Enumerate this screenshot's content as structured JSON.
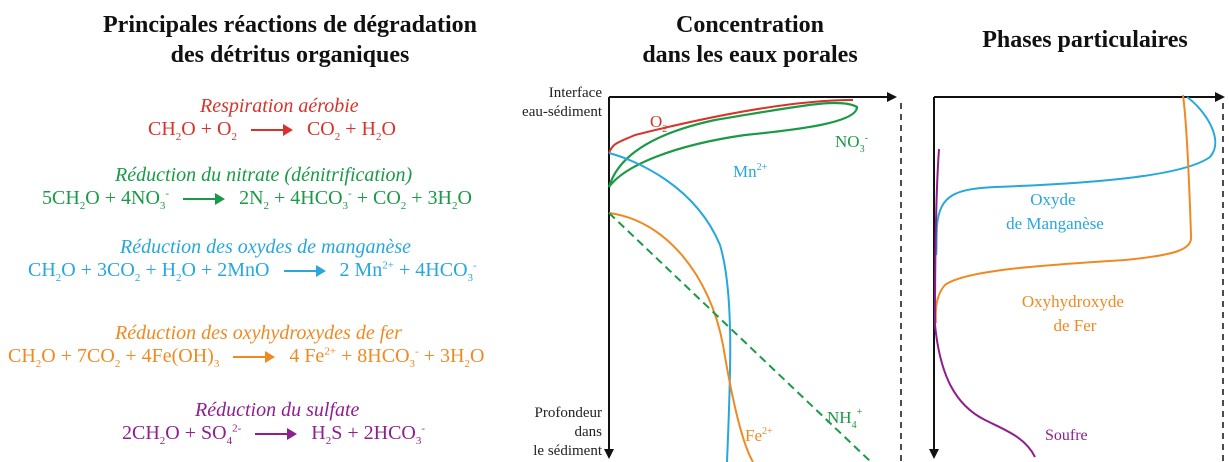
{
  "titles": {
    "left": [
      "Principales réactions de dégradation",
      "des détritus organiques"
    ],
    "middle": [
      "Concentration",
      "dans les  eaux porales"
    ],
    "right": "Phases particulaires"
  },
  "reactions": [
    {
      "name": "Respiration aérobie",
      "color": "#d6332a",
      "lhs": [
        "CH",
        {
          "sub": "2"
        },
        "O + O",
        {
          "sub": "2"
        }
      ],
      "rhs": [
        "CO",
        {
          "sub": "2"
        },
        " + H",
        {
          "sub": "2"
        },
        "O"
      ]
    },
    {
      "name": "Réduction du nitrate (dénitrification)",
      "color": "#1a9a46",
      "lhs": [
        "5CH",
        {
          "sub": "2"
        },
        "O + 4NO",
        {
          "sub": "3"
        },
        {
          "sup": "-"
        }
      ],
      "rhs": [
        "2N",
        {
          "sub": "2"
        },
        " + 4HCO",
        {
          "sub": "3"
        },
        {
          "sup": "-"
        },
        " + CO",
        {
          "sub": "2"
        },
        " + 3H",
        {
          "sub": "2"
        },
        "O"
      ]
    },
    {
      "name": "Réduction des oxydes de manganèse",
      "color": "#27a7dc",
      "lhs": [
        "CH",
        {
          "sub": "2"
        },
        "O + 3CO",
        {
          "sub": "2"
        },
        " + H",
        {
          "sub": "2"
        },
        "O + 2MnO"
      ],
      "rhs": [
        "2 Mn",
        {
          "sup": "2+"
        },
        " + 4HCO",
        {
          "sub": "3"
        },
        {
          "sup": "-"
        }
      ]
    },
    {
      "name": "Réduction des oxyhydroxydes de fer",
      "color": "#ef8a22",
      "lhs": [
        "CH",
        {
          "sub": "2"
        },
        "O + 7CO",
        {
          "sub": "2"
        },
        " + 4Fe(OH)",
        {
          "sub": "3"
        }
      ],
      "rhs": [
        "4 Fe",
        {
          "sup": "2+"
        },
        " + 8HCO",
        {
          "sub": "3"
        },
        {
          "sup": "-"
        },
        " + 3H",
        {
          "sub": "2"
        },
        "O"
      ]
    },
    {
      "name": "Réduction du sulfate",
      "color": "#8e1f8e",
      "lhs": [
        "2CH",
        {
          "sub": "2"
        },
        "O + SO",
        {
          "sub": "4"
        },
        {
          "sup": "2-"
        }
      ],
      "rhs": [
        "H",
        {
          "sub": "2"
        },
        "S + 2HCO",
        {
          "sub": "3"
        },
        {
          "sup": "-"
        }
      ]
    }
  ],
  "axis": {
    "interface": [
      "Interface",
      "eau-sédiment"
    ],
    "depth": [
      "Profondeur",
      "dans",
      "le sédiment"
    ]
  },
  "pore_labels": {
    "o2": {
      "base": "O",
      "sub": "2"
    },
    "no3": {
      "base": "NO",
      "sub": "3",
      "sup": "-"
    },
    "mn": {
      "base": "Mn",
      "sup": "2+"
    },
    "fe": {
      "base": "Fe",
      "sup": "2+"
    },
    "nh4": {
      "base": "NH",
      "sub": "4",
      "sup": "+"
    }
  },
  "phase_labels": {
    "mn_oxide": [
      "Oxyde",
      "de Manganèse"
    ],
    "fe_oxyhydroxide": [
      "Oxyhydroxyde",
      "de Fer"
    ],
    "sulfur": "Soufre"
  },
  "colors": {
    "o2": "#d6332a",
    "nitrate": "#1a9a46",
    "manganese": "#27a7dc",
    "iron": "#ef8a22",
    "sulfur": "#8e1f8e",
    "axis": "#111111"
  }
}
